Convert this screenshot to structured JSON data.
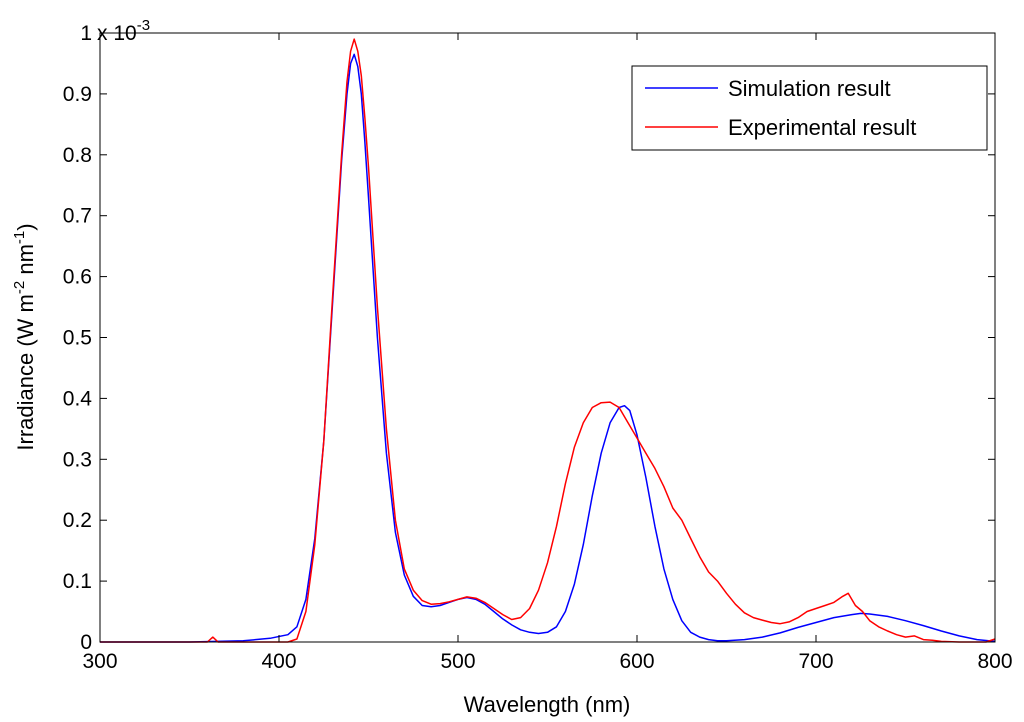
{
  "chart_data": {
    "type": "line",
    "title": "",
    "xlabel": "Wavelength (nm)",
    "ylabel": {
      "base": "Irradiance (W m",
      "sup1": "-2",
      "mid": " nm",
      "sup2": "-1",
      "end": ")"
    },
    "multiplier": {
      "base": "x 10",
      "exp": "-3"
    },
    "xlim": [
      300,
      800
    ],
    "ylim": [
      0,
      1
    ],
    "xticks": [
      300,
      400,
      500,
      600,
      700,
      800
    ],
    "xtick_labels": [
      "300",
      "400",
      "500",
      "600",
      "700",
      "800"
    ],
    "yticks": [
      0,
      0.1,
      0.2,
      0.3,
      0.4,
      0.5,
      0.6,
      0.7,
      0.8,
      0.9,
      1
    ],
    "ytick_labels": [
      "0",
      "0.1",
      "0.2",
      "0.3",
      "0.4",
      "0.5",
      "0.6",
      "0.7",
      "0.8",
      "0.9",
      "1"
    ],
    "grid": false,
    "legend_position": "top-right",
    "series": [
      {
        "name": "Simulation result",
        "color": "#0000ff",
        "x": [
          300,
          350,
          380,
          395,
          405,
          410,
          415,
          420,
          425,
          430,
          435,
          438,
          440,
          442,
          444,
          446,
          448,
          450,
          455,
          460,
          465,
          470,
          475,
          480,
          485,
          490,
          495,
          500,
          505,
          510,
          515,
          520,
          525,
          530,
          535,
          540,
          545,
          550,
          555,
          560,
          565,
          570,
          575,
          580,
          585,
          590,
          593,
          596,
          600,
          605,
          610,
          615,
          620,
          625,
          630,
          635,
          640,
          645,
          650,
          660,
          670,
          680,
          690,
          700,
          710,
          720,
          725,
          730,
          740,
          750,
          760,
          770,
          780,
          790,
          800
        ],
        "y": [
          0.0,
          0.0,
          0.002,
          0.006,
          0.012,
          0.025,
          0.07,
          0.17,
          0.33,
          0.56,
          0.79,
          0.9,
          0.95,
          0.965,
          0.945,
          0.9,
          0.82,
          0.73,
          0.5,
          0.31,
          0.18,
          0.11,
          0.075,
          0.06,
          0.058,
          0.06,
          0.065,
          0.07,
          0.073,
          0.07,
          0.062,
          0.05,
          0.038,
          0.028,
          0.02,
          0.016,
          0.014,
          0.016,
          0.025,
          0.05,
          0.095,
          0.16,
          0.24,
          0.31,
          0.36,
          0.385,
          0.388,
          0.38,
          0.34,
          0.27,
          0.19,
          0.12,
          0.07,
          0.035,
          0.016,
          0.008,
          0.004,
          0.002,
          0.002,
          0.004,
          0.008,
          0.015,
          0.024,
          0.032,
          0.04,
          0.045,
          0.047,
          0.046,
          0.042,
          0.035,
          0.027,
          0.018,
          0.01,
          0.004,
          0.001
        ]
      },
      {
        "name": "Experimental result",
        "color": "#ff0000",
        "x": [
          300,
          330,
          360,
          363,
          366,
          370,
          390,
          405,
          410,
          415,
          420,
          425,
          430,
          435,
          438,
          440,
          442,
          444,
          446,
          448,
          450,
          455,
          460,
          465,
          470,
          475,
          480,
          485,
          490,
          495,
          500,
          505,
          510,
          515,
          520,
          525,
          530,
          535,
          540,
          545,
          550,
          555,
          560,
          565,
          570,
          575,
          580,
          585,
          590,
          595,
          600,
          605,
          610,
          615,
          620,
          625,
          630,
          635,
          640,
          645,
          650,
          655,
          660,
          665,
          670,
          675,
          680,
          685,
          690,
          695,
          700,
          705,
          710,
          715,
          718,
          722,
          726,
          730,
          735,
          740,
          745,
          750,
          755,
          760,
          765,
          770,
          780,
          790,
          795,
          800
        ],
        "y": [
          0.0,
          0.0,
          0.0,
          0.008,
          0.0,
          0.0,
          0.0,
          0.0,
          0.005,
          0.05,
          0.16,
          0.33,
          0.57,
          0.8,
          0.92,
          0.97,
          0.99,
          0.97,
          0.93,
          0.86,
          0.78,
          0.55,
          0.35,
          0.2,
          0.12,
          0.085,
          0.068,
          0.062,
          0.063,
          0.066,
          0.07,
          0.074,
          0.072,
          0.065,
          0.055,
          0.045,
          0.037,
          0.04,
          0.055,
          0.085,
          0.13,
          0.19,
          0.26,
          0.32,
          0.36,
          0.385,
          0.393,
          0.394,
          0.385,
          0.36,
          0.335,
          0.31,
          0.285,
          0.255,
          0.22,
          0.2,
          0.17,
          0.14,
          0.115,
          0.1,
          0.08,
          0.062,
          0.048,
          0.04,
          0.036,
          0.032,
          0.03,
          0.033,
          0.04,
          0.05,
          0.055,
          0.06,
          0.065,
          0.075,
          0.08,
          0.06,
          0.05,
          0.035,
          0.025,
          0.018,
          0.012,
          0.008,
          0.01,
          0.004,
          0.003,
          0.001,
          0.0,
          0.0,
          0.0,
          0.005
        ]
      }
    ]
  }
}
